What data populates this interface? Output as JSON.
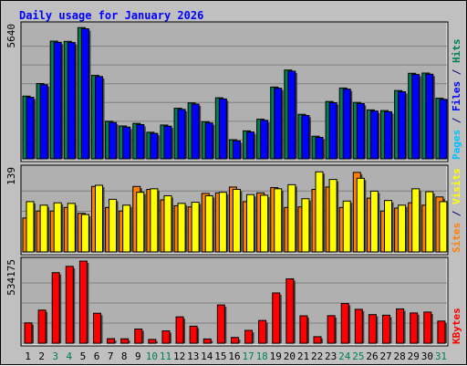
{
  "chart_data": {
    "type": "bar",
    "title": "Daily usage for January 2026",
    "categories": [
      "1",
      "2",
      "3",
      "4",
      "5",
      "6",
      "7",
      "8",
      "9",
      "10",
      "11",
      "12",
      "13",
      "14",
      "15",
      "16",
      "17",
      "18",
      "19",
      "20",
      "21",
      "22",
      "23",
      "24",
      "25",
      "26",
      "27",
      "28",
      "29",
      "30",
      "31"
    ],
    "weekend_days": [
      "3",
      "4",
      "10",
      "11",
      "17",
      "18",
      "24",
      "25",
      "31"
    ],
    "panels": [
      {
        "id": "hits_files",
        "max_label": "5640",
        "ylim": [
          0,
          5640
        ],
        "grid": true,
        "legend_right": [
          {
            "text": "Pages",
            "color": "#00c0ff"
          },
          {
            "text": " / ",
            "color": "#000080"
          },
          {
            "text": "Files",
            "color": "#0000ff"
          },
          {
            "text": " / ",
            "color": "#000080"
          },
          {
            "text": "Hits",
            "color": "#00804f"
          }
        ],
        "series": [
          {
            "name": "Pages",
            "color": "#00c0ff",
            "values": [
              0,
              0,
              0,
              0,
              0,
              0,
              0,
              0,
              0,
              0,
              0,
              0,
              0,
              0,
              0,
              0,
              0,
              0,
              0,
              0,
              0,
              0,
              0,
              0,
              0,
              0,
              0,
              0,
              0,
              0,
              0
            ]
          },
          {
            "name": "Files",
            "color": "#0000ff",
            "values": [
              2640,
              3180,
              5000,
              4990,
              5580,
              3530,
              1560,
              1360,
              1470,
              1090,
              1400,
              2120,
              2350,
              1540,
              2570,
              770,
              1150,
              1650,
              3030,
              3760,
              1860,
              920,
              2410,
              2990,
              2370,
              2050,
              2020,
              2880,
              3620,
              3630,
              2550
            ]
          },
          {
            "name": "Hits",
            "color": "#00804f",
            "values": [
              2690,
              3230,
              5050,
              5040,
              5630,
              3580,
              1610,
              1410,
              1520,
              1140,
              1450,
              2170,
              2400,
              1590,
              2620,
              820,
              1200,
              1700,
              3080,
              3810,
              1910,
              970,
              2460,
              3040,
              2420,
              2100,
              2070,
              2930,
              3670,
              3680,
              2600
            ]
          }
        ]
      },
      {
        "id": "visits_sites",
        "max_label": "139",
        "ylim": [
          0,
          139
        ],
        "grid": true,
        "legend_right": [
          {
            "text": "Sites",
            "color": "#ff8000"
          },
          {
            "text": " / ",
            "color": "#000080"
          },
          {
            "text": "Visits",
            "color": "#ffff00"
          }
        ],
        "series": [
          {
            "name": "Visits",
            "color": "#ffff00",
            "values": [
              86,
              80,
              84,
              83,
              64,
              114,
              90,
              80,
              102,
              108,
              96,
              83,
              85,
              96,
              102,
              107,
              98,
              97,
              108,
              115,
              91,
              137,
              124,
              87,
              126,
              104,
              88,
              80,
              108,
              103,
              86
            ]
          },
          {
            "name": "Sites",
            "color": "#ff8000",
            "values": [
              58,
              70,
              70,
              76,
              66,
              112,
              76,
              70,
              112,
              107,
              89,
              79,
              77,
              100,
              101,
              111,
              86,
              101,
              110,
              76,
              77,
              107,
              111,
              76,
              136,
              92,
              70,
              75,
              84,
              80,
              94
            ]
          }
        ]
      },
      {
        "id": "kbytes",
        "max_label": "534175",
        "ylim": [
          0,
          534175
        ],
        "grid": true,
        "legend_right": [
          {
            "text": "KBytes",
            "color": "#ff0000"
          }
        ],
        "series": [
          {
            "name": "KBytes",
            "color": "#ff0000",
            "values": [
              135000,
              220000,
              469000,
              511000,
              546000,
              199000,
              30000,
              29000,
              94000,
              25000,
              82000,
              175000,
              113000,
              28000,
              254000,
              38000,
              85000,
              151000,
              334000,
              428000,
              182000,
              43000,
              183000,
              264000,
              225000,
              190000,
              186000,
              228000,
              201000,
              207000,
              147000
            ]
          }
        ]
      }
    ]
  },
  "colors": {
    "background": "#c0c0c0",
    "plot_background": "#b0b0b0",
    "title": "#0000ff",
    "weekday_label": "#000000",
    "weekend_label": "#00804f",
    "grid": "#808080"
  }
}
